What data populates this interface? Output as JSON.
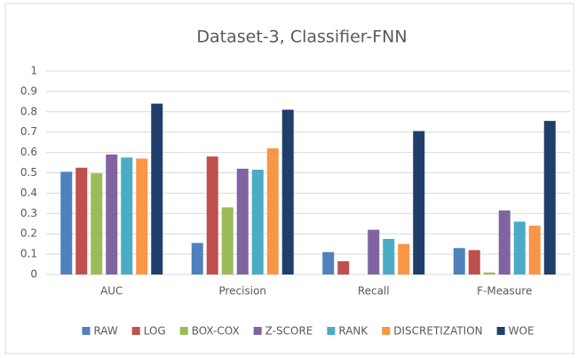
{
  "chart_data": {
    "type": "bar",
    "title": "Dataset-3, Classifier-FNN",
    "categories": [
      "AUC",
      "Precision",
      "Recall",
      "F-Measure"
    ],
    "series": [
      {
        "name": "RAW",
        "color": "#4f81bd",
        "values": [
          0.505,
          0.155,
          0.11,
          0.13
        ]
      },
      {
        "name": "LOG",
        "color": "#c0504d",
        "values": [
          0.525,
          0.58,
          0.065,
          0.12
        ]
      },
      {
        "name": "BOX-COX",
        "color": "#9bbb59",
        "values": [
          0.497,
          0.33,
          0,
          0.01
        ]
      },
      {
        "name": "Z-SCORE",
        "color": "#8064a2",
        "values": [
          0.59,
          0.52,
          0.22,
          0.315
        ]
      },
      {
        "name": "RANK",
        "color": "#4bacc6",
        "values": [
          0.575,
          0.515,
          0.175,
          0.26
        ]
      },
      {
        "name": "DISCRETIZATION",
        "color": "#f79646",
        "values": [
          0.57,
          0.62,
          0.15,
          0.24
        ]
      },
      {
        "name": "WOE",
        "color": "#1f3f6a",
        "values": [
          0.84,
          0.81,
          0.705,
          0.755
        ]
      }
    ],
    "ylim": [
      0,
      1
    ],
    "yticks": [
      0,
      0.1,
      0.2,
      0.3,
      0.4,
      0.5,
      0.6,
      0.7,
      0.8,
      0.9,
      1
    ],
    "grid": true,
    "legend": "bottom"
  }
}
